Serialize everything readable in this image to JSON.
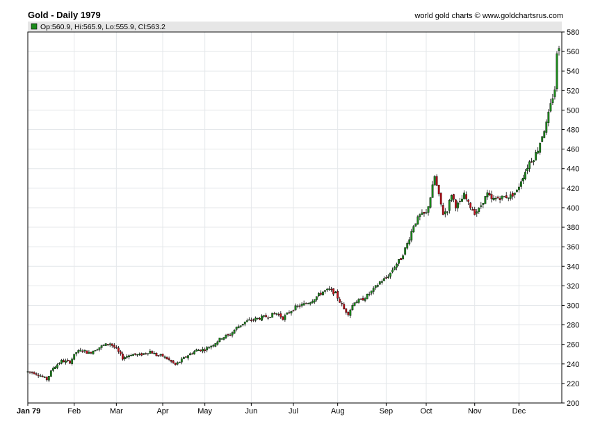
{
  "chart_data": {
    "type": "candlestick",
    "title": "Gold - Daily 1979",
    "credit": "world gold charts © www.goldchartsrus.com",
    "legend": {
      "label": "Op:560.9, Hi:565.9, Lo:555.9, Cl:563.2",
      "swatch_color": "#1a8a1a"
    },
    "colors": {
      "up": "#1a8a1a",
      "down": "#c0101a",
      "wick": "#000000",
      "grid": "#e4e7ea",
      "legend_bg": "#e6e6e6"
    },
    "grid": true,
    "ylim": [
      200,
      580
    ],
    "yticks": [
      200,
      220,
      240,
      260,
      280,
      300,
      320,
      340,
      360,
      380,
      400,
      420,
      440,
      460,
      480,
      500,
      520,
      540,
      560,
      580
    ],
    "xlim_day": [
      0,
      252
    ],
    "months": [
      {
        "label": "Jan 79",
        "day": 0
      },
      {
        "label": "Feb",
        "day": 22
      },
      {
        "label": "Mar",
        "day": 42
      },
      {
        "label": "Apr",
        "day": 64
      },
      {
        "label": "May",
        "day": 84
      },
      {
        "label": "Jun",
        "day": 106
      },
      {
        "label": "Jul",
        "day": 126
      },
      {
        "label": "Aug",
        "day": 147
      },
      {
        "label": "Sep",
        "day": 170
      },
      {
        "label": "Oct",
        "day": 189
      },
      {
        "label": "Nov",
        "day": 212
      },
      {
        "label": "Dec",
        "day": 233
      }
    ],
    "anchors": [
      [
        0,
        232
      ],
      [
        3,
        231
      ],
      [
        6,
        228
      ],
      [
        9,
        224
      ],
      [
        12,
        236
      ],
      [
        16,
        243
      ],
      [
        20,
        242
      ],
      [
        23,
        252
      ],
      [
        26,
        254
      ],
      [
        29,
        251
      ],
      [
        32,
        255
      ],
      [
        36,
        259
      ],
      [
        39,
        261
      ],
      [
        42,
        255
      ],
      [
        45,
        246
      ],
      [
        49,
        250
      ],
      [
        53,
        249
      ],
      [
        58,
        253
      ],
      [
        61,
        249
      ],
      [
        64,
        248
      ],
      [
        67,
        244
      ],
      [
        70,
        239
      ],
      [
        73,
        244
      ],
      [
        76,
        249
      ],
      [
        80,
        254
      ],
      [
        84,
        255
      ],
      [
        88,
        260
      ],
      [
        92,
        267
      ],
      [
        96,
        270
      ],
      [
        99,
        277
      ],
      [
        103,
        283
      ],
      [
        106,
        285
      ],
      [
        110,
        287
      ],
      [
        114,
        289
      ],
      [
        118,
        292
      ],
      [
        121,
        287
      ],
      [
        124,
        293
      ],
      [
        127,
        298
      ],
      [
        131,
        301
      ],
      [
        134,
        304
      ],
      [
        137,
        309
      ],
      [
        140,
        314
      ],
      [
        143,
        316
      ],
      [
        146,
        312
      ],
      [
        148,
        304
      ],
      [
        150,
        296
      ],
      [
        152,
        292
      ],
      [
        155,
        304
      ],
      [
        158,
        305
      ],
      [
        161,
        310
      ],
      [
        164,
        316
      ],
      [
        167,
        324
      ],
      [
        170,
        328
      ],
      [
        172,
        333
      ],
      [
        174,
        340
      ],
      [
        177,
        348
      ],
      [
        180,
        363
      ],
      [
        183,
        382
      ],
      [
        186,
        392
      ],
      [
        189,
        394
      ],
      [
        191,
        411
      ],
      [
        193,
        432
      ],
      [
        195,
        412
      ],
      [
        197,
        394
      ],
      [
        199,
        398
      ],
      [
        201,
        414
      ],
      [
        203,
        402
      ],
      [
        205,
        405
      ],
      [
        207,
        413
      ],
      [
        209,
        404
      ],
      [
        212,
        395
      ],
      [
        214,
        398
      ],
      [
        216,
        407
      ],
      [
        218,
        414
      ],
      [
        220,
        408
      ],
      [
        223,
        410
      ],
      [
        226,
        411
      ],
      [
        229,
        412
      ],
      [
        232,
        417
      ],
      [
        234,
        428
      ],
      [
        236,
        437
      ],
      [
        238,
        447
      ],
      [
        240,
        451
      ],
      [
        242,
        460
      ],
      [
        244,
        474
      ],
      [
        246,
        486
      ],
      [
        248,
        505
      ],
      [
        250,
        522
      ],
      [
        251,
        556
      ],
      [
        252,
        563
      ]
    ],
    "last_bar": {
      "open": 560.9,
      "high": 565.9,
      "low": 555.9,
      "close": 563.2
    }
  }
}
